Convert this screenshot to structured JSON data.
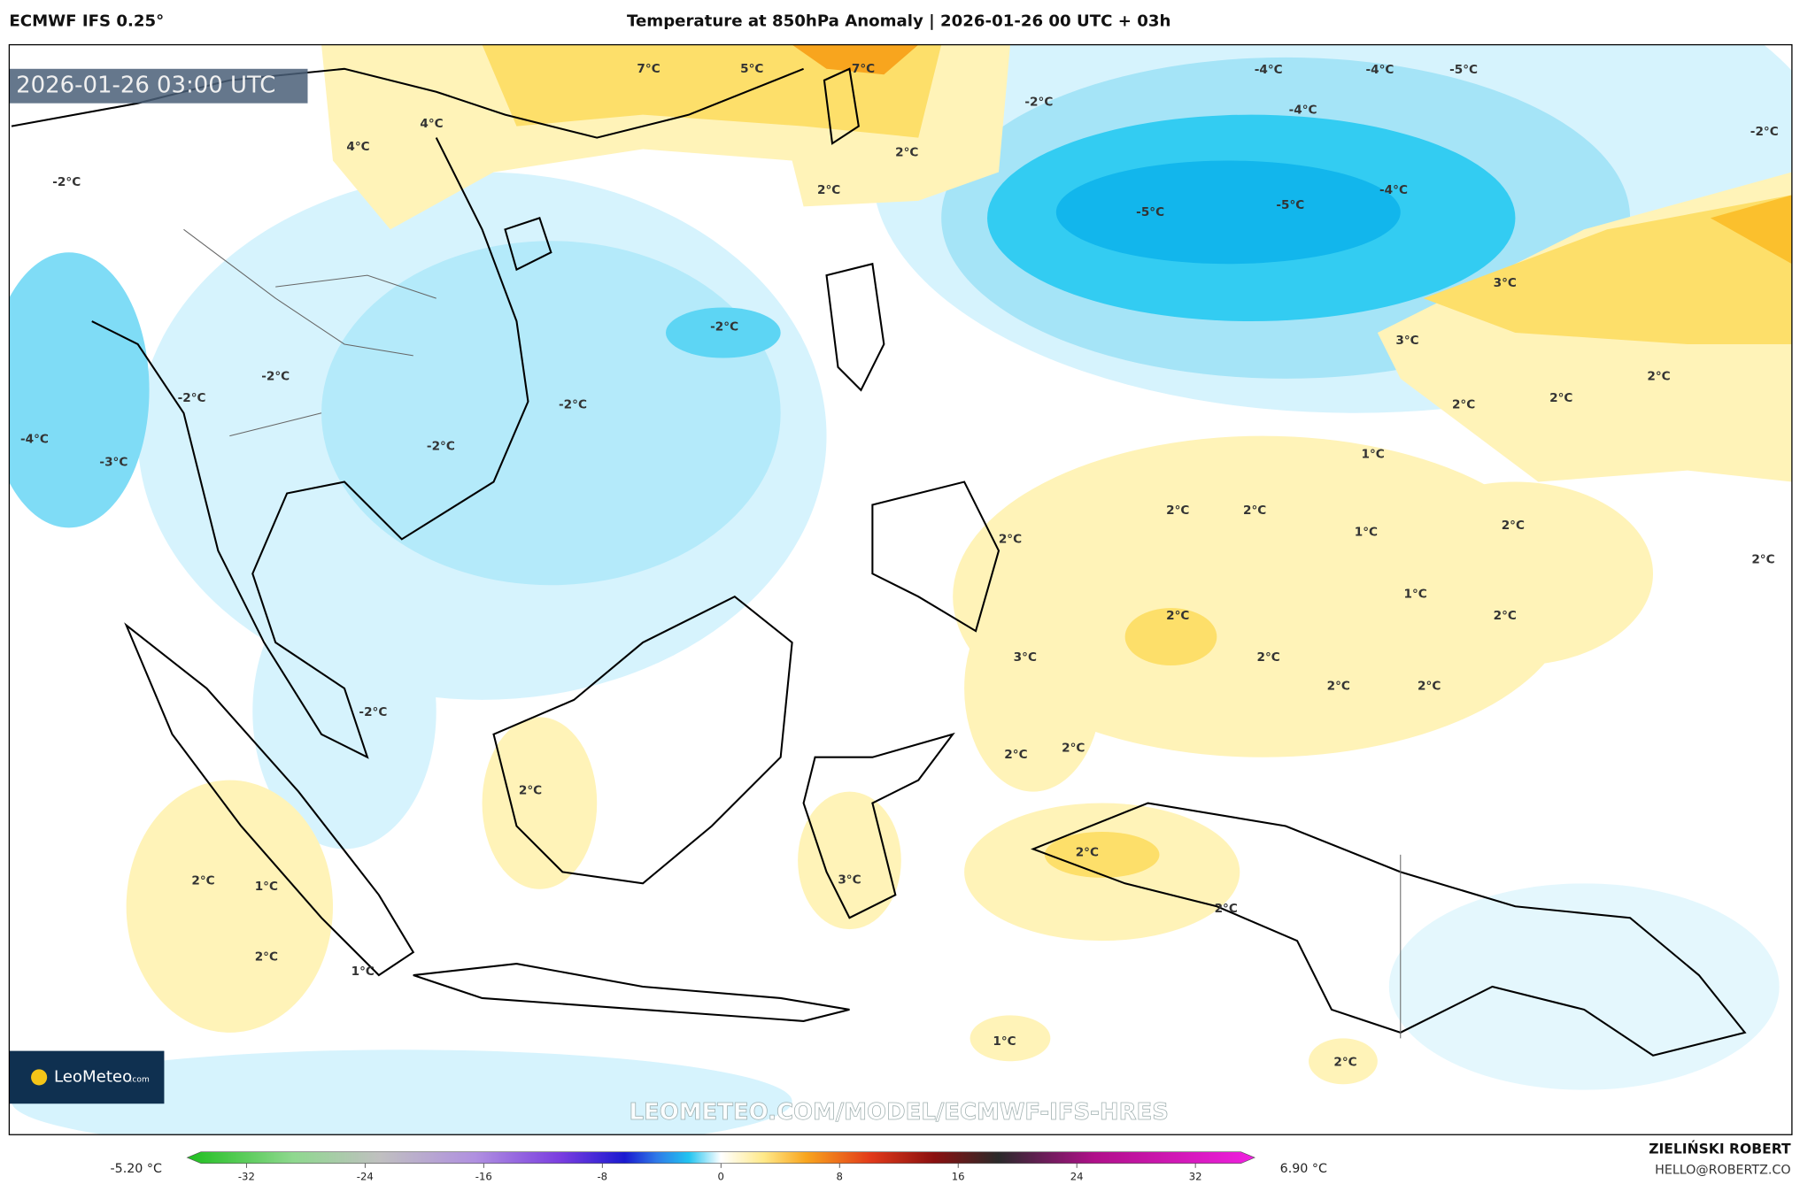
{
  "header": {
    "model": "ECMWF IFS 0.25°",
    "title": "Temperature at 850hPa Anomaly | 2026-01-26 00 UTC + 03h"
  },
  "map": {
    "valid_time": "2026-01-26 03:00 UTC",
    "logo": {
      "name": "LeoMeteo",
      "suffix": ".com"
    },
    "watermark": "LEOMETEO.COM/MODEL/ECMWF-IFS-HRES",
    "contour_labels": [
      "7°C",
      "5°C",
      "7°C",
      "4°C",
      "4°C",
      "2°C",
      "2°C",
      "-2°C",
      "-4°C",
      "-4°C",
      "-5°C",
      "-4°C",
      "-2°C",
      "-5°C",
      "-5°C",
      "-4°C",
      "-2°C",
      "-2°C",
      "-2°C",
      "-2°C",
      "-2°C",
      "-4°C",
      "-3°C",
      "-2°C",
      "3°C",
      "3°C",
      "2°C",
      "2°C",
      "2°C",
      "1°C",
      "2°C",
      "2°C",
      "2°C",
      "1°C",
      "2°C",
      "2°C",
      "1°C",
      "2°C",
      "2°C",
      "3°C",
      "2°C",
      "2°C",
      "2°C",
      "-2°C",
      "2°C",
      "2°C",
      "2°C",
      "2°C",
      "3°C",
      "2°C",
      "2°C",
      "1°C",
      "2°C",
      "1°C",
      "1°C",
      "2°C"
    ]
  },
  "colorbar": {
    "min_label": "-5.20 °C",
    "max_label": "6.90 °C",
    "lim": [
      -36,
      36
    ],
    "ticks": [
      -32,
      -24,
      -16,
      -8,
      0,
      8,
      16,
      24,
      32
    ]
  },
  "footer": {
    "author": "ZIELIŃSKI ROBERT",
    "contact": "HELLO@ROBERTZ.CO"
  }
}
